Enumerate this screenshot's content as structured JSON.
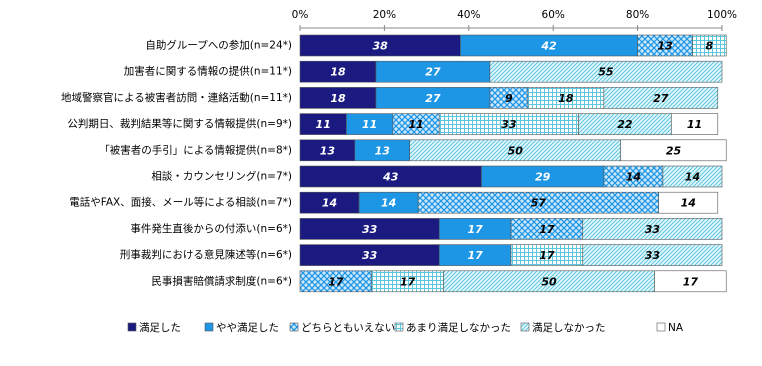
{
  "chart_data": {
    "type": "stacked-bar-horizontal",
    "categories": [
      "自助グループへの参加(n=24*)",
      "加害者に関する情報の提供(n=11*)",
      "地域警察官による被害者訪問・連絡活動(n=11*)",
      "公判期日、裁判結果等に関する情報提供(n=9*)",
      "「被害者の手引」による情報提供(n=8*)",
      "相談・カウンセリング(n=7*)",
      "電話やFAX、面接、メール等による相談(n=7*)",
      "事件発生直後からの付添い(n=6*)",
      "刑事裁判における意見陳述等(n=6*)",
      "民事損害賠償請求制度(n=6*)"
    ],
    "series": [
      {
        "name": "満足した",
        "color": "#1a1a80",
        "pattern": "solid",
        "values": [
          38,
          18,
          18,
          11,
          13,
          43,
          14,
          33,
          33,
          null
        ]
      },
      {
        "name": "やや満足した",
        "color": "#1e96e6",
        "pattern": "solid",
        "values": [
          42,
          27,
          27,
          11,
          13,
          29,
          14,
          17,
          17,
          null
        ]
      },
      {
        "name": "どちらともいえない",
        "color": "#1e96e6",
        "pattern": "crosshatch",
        "values": [
          13,
          null,
          9,
          11,
          null,
          14,
          57,
          17,
          null,
          17
        ]
      },
      {
        "name": "あまり満足しなかった",
        "color": "#5cc8e0",
        "pattern": "grid",
        "values": [
          8,
          null,
          18,
          33,
          null,
          null,
          null,
          null,
          17,
          17
        ]
      },
      {
        "name": "満足しなかった",
        "color": "#5cc8e0",
        "pattern": "diagonal",
        "values": [
          null,
          55,
          27,
          22,
          50,
          14,
          null,
          33,
          33,
          50
        ]
      },
      {
        "name": "NA",
        "color": "#ffffff",
        "pattern": "solid",
        "values": [
          null,
          null,
          null,
          11,
          25,
          null,
          14,
          null,
          null,
          17
        ]
      }
    ],
    "xlim": [
      0,
      100
    ],
    "xticks": [
      {
        "value": 0,
        "label": "0%"
      },
      {
        "value": 20,
        "label": "20%"
      },
      {
        "value": 40,
        "label": "40%"
      },
      {
        "value": 60,
        "label": "60%"
      },
      {
        "value": 80,
        "label": "80%"
      },
      {
        "value": 100,
        "label": "100%"
      }
    ],
    "legend": "bottom"
  }
}
